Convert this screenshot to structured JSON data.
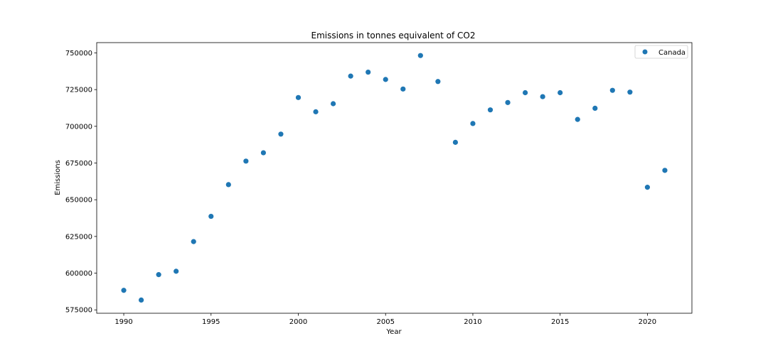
{
  "chart_data": {
    "type": "scatter",
    "title": "Emissions in tonnes equivalent of CO2",
    "xlabel": "Year",
    "ylabel": "Emissions",
    "xlim": [
      1988.45,
      2022.55
    ],
    "ylim": [
      572700,
      757000
    ],
    "xticks": [
      1990,
      1995,
      2000,
      2005,
      2010,
      2015,
      2020
    ],
    "yticks": [
      575000,
      600000,
      625000,
      650000,
      675000,
      700000,
      725000,
      750000
    ],
    "grid": false,
    "legend_position": "top-right",
    "series": [
      {
        "name": "Canada",
        "color": "#1f77b4",
        "points": [
          {
            "x": 1990,
            "y": 588300
          },
          {
            "x": 1991,
            "y": 581700
          },
          {
            "x": 1992,
            "y": 599000
          },
          {
            "x": 1993,
            "y": 601300
          },
          {
            "x": 1994,
            "y": 621500
          },
          {
            "x": 1995,
            "y": 638700
          },
          {
            "x": 1996,
            "y": 660300
          },
          {
            "x": 1997,
            "y": 676300
          },
          {
            "x": 1998,
            "y": 682000
          },
          {
            "x": 1999,
            "y": 694700
          },
          {
            "x": 2000,
            "y": 719600
          },
          {
            "x": 2001,
            "y": 709900
          },
          {
            "x": 2002,
            "y": 715400
          },
          {
            "x": 2003,
            "y": 734200
          },
          {
            "x": 2004,
            "y": 736900
          },
          {
            "x": 2005,
            "y": 731900
          },
          {
            "x": 2006,
            "y": 725400
          },
          {
            "x": 2007,
            "y": 748200
          },
          {
            "x": 2008,
            "y": 730500
          },
          {
            "x": 2009,
            "y": 689100
          },
          {
            "x": 2010,
            "y": 701900
          },
          {
            "x": 2011,
            "y": 711200
          },
          {
            "x": 2012,
            "y": 716200
          },
          {
            "x": 2013,
            "y": 722900
          },
          {
            "x": 2014,
            "y": 720200
          },
          {
            "x": 2015,
            "y": 722900
          },
          {
            "x": 2016,
            "y": 704700
          },
          {
            "x": 2017,
            "y": 712300
          },
          {
            "x": 2018,
            "y": 724500
          },
          {
            "x": 2019,
            "y": 723300
          },
          {
            "x": 2020,
            "y": 658500
          },
          {
            "x": 2021,
            "y": 670000
          }
        ]
      }
    ]
  }
}
